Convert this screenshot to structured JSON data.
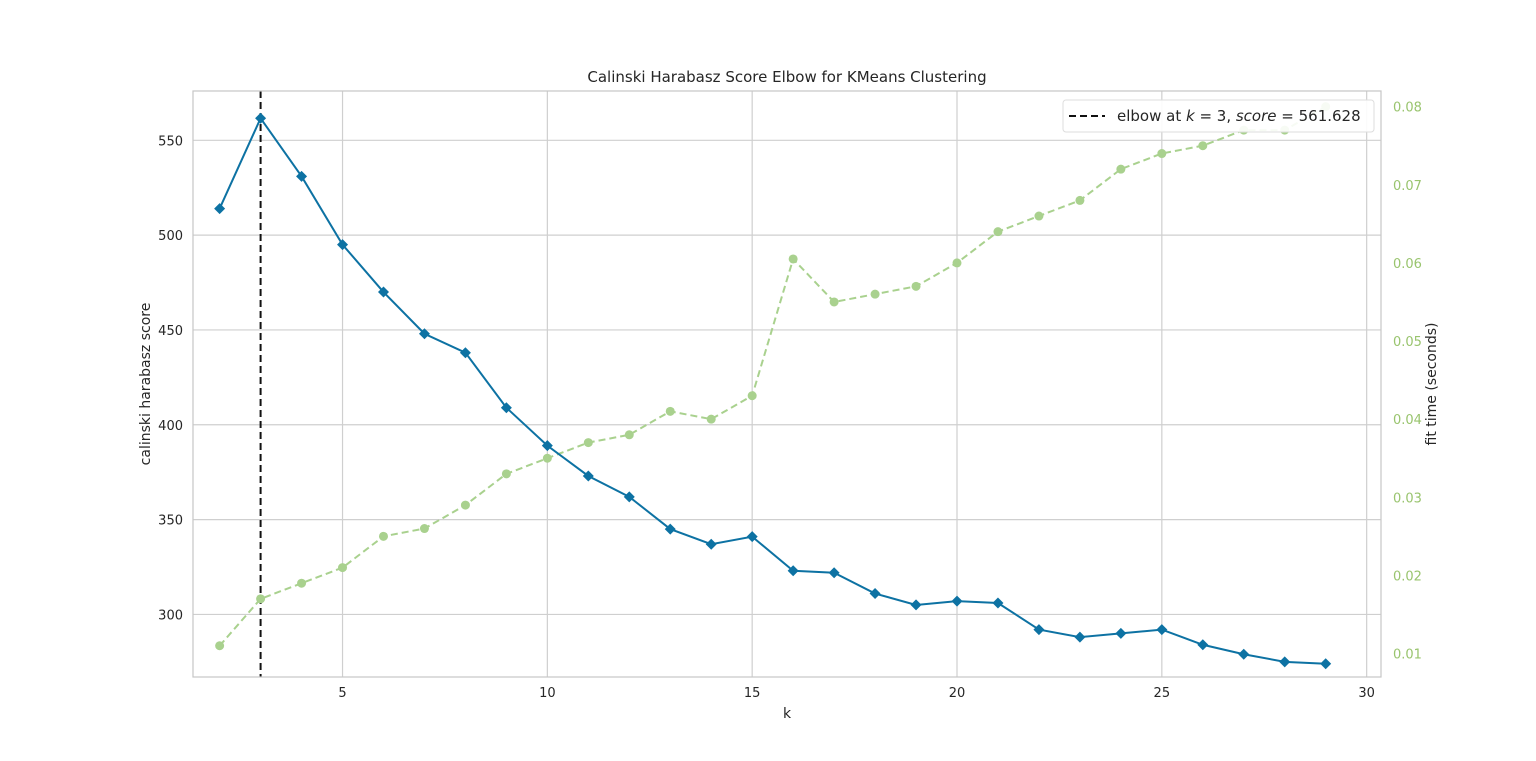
{
  "chart_data": {
    "type": "line",
    "title": "Calinski Harabasz Score Elbow for KMeans Clustering",
    "xlabel": "k",
    "ylabel": "calinski harabasz score",
    "y2label": "fit time (seconds)",
    "xlim": [
      1.35,
      30.35
    ],
    "ylim": [
      267,
      576
    ],
    "y2lim": [
      0.007,
      0.082
    ],
    "xticks": [
      5,
      10,
      15,
      20,
      25,
      30
    ],
    "yticks": [
      300,
      350,
      400,
      450,
      500,
      550
    ],
    "y2ticks": [
      0.01,
      0.02,
      0.03,
      0.04,
      0.05,
      0.06,
      0.07,
      0.08
    ],
    "y2tick_labels": [
      "0.01",
      "0.02",
      "0.03",
      "0.04",
      "0.05",
      "0.06",
      "0.07",
      "0.08"
    ],
    "grid": true,
    "legend_position": "top-right",
    "legend": {
      "label_prefix": "elbow at ",
      "label_k": "k",
      "label_eq1": " = 3, ",
      "label_score": "score",
      "label_eq2": " = 561.628"
    },
    "elbow": {
      "k": 3,
      "score": 561.628
    },
    "colors": {
      "score": "#0d72a3",
      "fit_time": "#a9d18e",
      "fit_time_text": "#99c46e",
      "elbow": "#111111",
      "grid": "#cfcfcf",
      "spine": "#c6c6c6"
    },
    "series": [
      {
        "name": "calinski harabasz score",
        "axis": "left",
        "x": [
          2,
          3,
          4,
          5,
          6,
          7,
          8,
          9,
          10,
          11,
          12,
          13,
          14,
          15,
          16,
          17,
          18,
          19,
          20,
          21,
          22,
          23,
          24,
          25,
          26,
          27,
          28,
          29
        ],
        "values": [
          514,
          561.628,
          531,
          495,
          470,
          448,
          438,
          409,
          389,
          373,
          362,
          345,
          337,
          341,
          323,
          322,
          311,
          305,
          307,
          306,
          292,
          288,
          290,
          292,
          284,
          279,
          275,
          274
        ]
      },
      {
        "name": "fit time (seconds)",
        "axis": "right",
        "x": [
          2,
          3,
          4,
          5,
          6,
          7,
          8,
          9,
          10,
          11,
          12,
          13,
          14,
          15,
          16,
          17,
          18,
          19,
          20,
          21,
          22,
          23,
          24,
          25,
          26,
          27,
          28,
          29
        ],
        "values": [
          0.011,
          0.017,
          0.019,
          0.021,
          0.025,
          0.026,
          0.029,
          0.033,
          0.035,
          0.037,
          0.038,
          0.041,
          0.04,
          0.043,
          0.0605,
          0.055,
          0.056,
          0.057,
          0.06,
          0.064,
          0.066,
          0.068,
          0.072,
          0.074,
          0.075,
          0.077,
          0.077,
          0.08
        ]
      }
    ]
  }
}
